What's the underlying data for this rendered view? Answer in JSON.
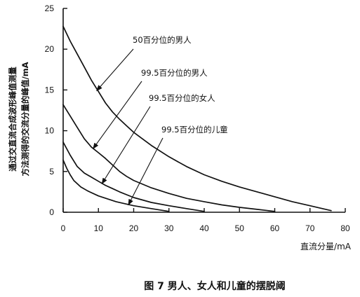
{
  "chart_data": {
    "type": "line",
    "caption": "图 7 男人、女人和儿童的摆脱阈",
    "xlabel": "直流分量/mA",
    "ylabel_lines": [
      "通过交直流合成波形峰值测量",
      "方法测得的交流分量的峰值/mA"
    ],
    "xlim": [
      0,
      80
    ],
    "ylim": [
      0,
      25
    ],
    "x_ticks": [
      0,
      10,
      20,
      30,
      40,
      50,
      60,
      70,
      80
    ],
    "y_ticks": [
      0,
      5,
      10,
      15,
      20,
      25
    ],
    "grid": false,
    "series": [
      {
        "name": "50百分位的男人",
        "points": [
          [
            0,
            22.8
          ],
          [
            2,
            21
          ],
          [
            4,
            19.4
          ],
          [
            6,
            17.8
          ],
          [
            8,
            16.2
          ],
          [
            10,
            14.8
          ],
          [
            12,
            13.4
          ],
          [
            14,
            12.3
          ],
          [
            16,
            11.4
          ],
          [
            18,
            10.6
          ],
          [
            20,
            9.8
          ],
          [
            25,
            8.2
          ],
          [
            30,
            6.8
          ],
          [
            35,
            5.6
          ],
          [
            40,
            4.6
          ],
          [
            45,
            3.8
          ],
          [
            50,
            3.1
          ],
          [
            55,
            2.5
          ],
          [
            60,
            1.9
          ],
          [
            65,
            1.3
          ],
          [
            70,
            0.8
          ],
          [
            73,
            0.5
          ],
          [
            76,
            0.2
          ]
        ]
      },
      {
        "name": "99.5百分位的男人",
        "points": [
          [
            0,
            13.2
          ],
          [
            2,
            11.8
          ],
          [
            4,
            10.4
          ],
          [
            6,
            9.0
          ],
          [
            8,
            8.0
          ],
          [
            10,
            7.3
          ],
          [
            12,
            6.6
          ],
          [
            14,
            5.8
          ],
          [
            16,
            5.0
          ],
          [
            18,
            4.4
          ],
          [
            20,
            3.9
          ],
          [
            25,
            3.0
          ],
          [
            30,
            2.3
          ],
          [
            35,
            1.7
          ],
          [
            40,
            1.3
          ],
          [
            45,
            0.9
          ],
          [
            50,
            0.6
          ],
          [
            55,
            0.35
          ],
          [
            60,
            0.1
          ]
        ]
      },
      {
        "name": "99.5百分位的女人",
        "points": [
          [
            0,
            8.6
          ],
          [
            2,
            7.0
          ],
          [
            4,
            5.6
          ],
          [
            6,
            4.8
          ],
          [
            8,
            4.3
          ],
          [
            10,
            3.8
          ],
          [
            12,
            3.3
          ],
          [
            14,
            2.9
          ],
          [
            16,
            2.5
          ],
          [
            20,
            1.8
          ],
          [
            25,
            1.2
          ],
          [
            30,
            0.8
          ],
          [
            35,
            0.45
          ],
          [
            40,
            0.1
          ]
        ]
      },
      {
        "name": "99.5百分位的儿童",
        "points": [
          [
            0,
            6.4
          ],
          [
            1,
            5.4
          ],
          [
            2,
            4.6
          ],
          [
            3,
            3.9
          ],
          [
            4,
            3.5
          ],
          [
            5,
            3.1
          ],
          [
            7,
            2.6
          ],
          [
            10,
            2.0
          ],
          [
            15,
            1.3
          ],
          [
            20,
            0.8
          ],
          [
            25,
            0.45
          ],
          [
            30,
            0.1
          ]
        ]
      }
    ],
    "annotations": [
      {
        "text": "50百分位的男人",
        "target": [
          9.5,
          14.9
        ]
      },
      {
        "text": "99.5百分位的男人",
        "target": [
          8.5,
          7.8
        ]
      },
      {
        "text": "99.5百分位的女人",
        "target": [
          11,
          3.5
        ]
      },
      {
        "text": "99.5百分位的儿童",
        "target": [
          18.5,
          0.9
        ]
      }
    ]
  }
}
